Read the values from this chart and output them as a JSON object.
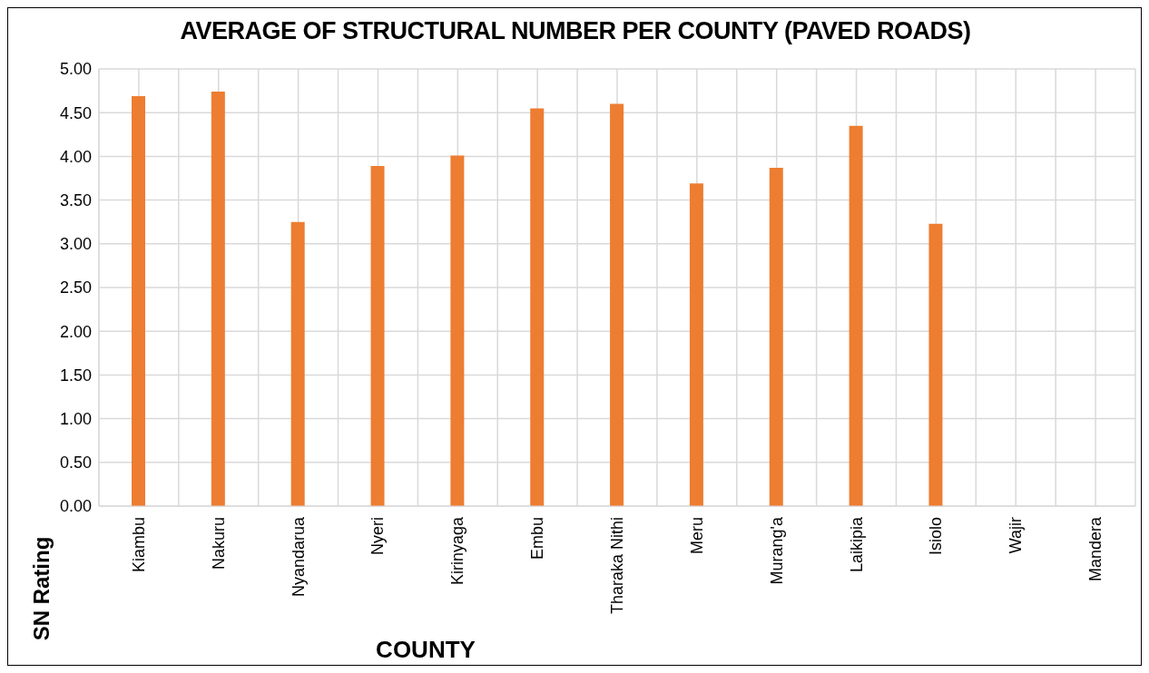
{
  "chart_data": {
    "type": "bar",
    "title": "AVERAGE OF STRUCTURAL NUMBER PER COUNTY (PAVED ROADS)",
    "xlabel": "COUNTY",
    "ylabel": "SN Rating",
    "categories": [
      "Kiambu",
      "Nakuru",
      "Nyandarua",
      "Nyeri",
      "Kirinyaga",
      "Embu",
      "Tharaka Nithi",
      "Meru",
      "Murang'a",
      "Laikipia",
      "Isiolo",
      "Wajir",
      "Mandera"
    ],
    "values": [
      4.69,
      4.74,
      3.25,
      3.89,
      4.01,
      4.55,
      4.6,
      3.69,
      3.87,
      4.35,
      3.23,
      null,
      null
    ],
    "color": "#ed7d31",
    "ylim": [
      0,
      5
    ],
    "yticks": [
      {
        "value": 0,
        "label": "0.00"
      },
      {
        "value": 0.5,
        "label": "0.50"
      },
      {
        "value": 1,
        "label": "1.00"
      },
      {
        "value": 1.5,
        "label": "1.50"
      },
      {
        "value": 2,
        "label": "2.00"
      },
      {
        "value": 2.5,
        "label": "2.50"
      },
      {
        "value": 3,
        "label": "3.00"
      },
      {
        "value": 3.5,
        "label": "3.50"
      },
      {
        "value": 4,
        "label": "4.00"
      },
      {
        "value": 4.5,
        "label": "4.50"
      },
      {
        "value": 5,
        "label": "5.00"
      }
    ],
    "grid": true
  }
}
